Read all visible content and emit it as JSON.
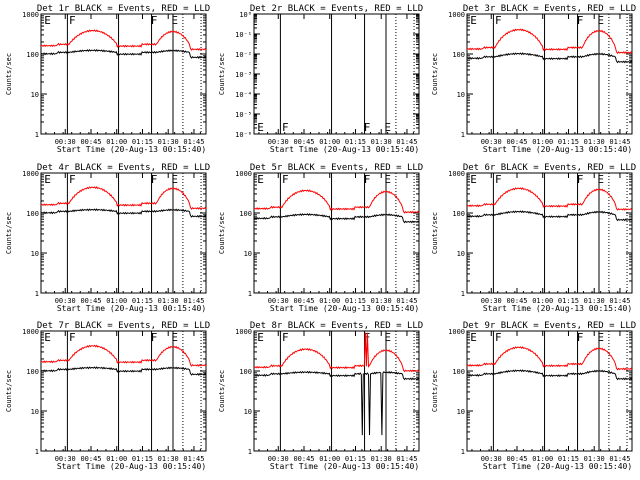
{
  "chart_data": [
    {
      "type": "line",
      "title": "Det 1r BLACK = Events, RED = LLD",
      "ylabel": "Counts/sec",
      "xlabel": "Start Time (20-Aug-13 00:15:40)",
      "yscale": "log",
      "ylim": [
        1,
        1000
      ],
      "yticks": [
        "1",
        "10",
        "100",
        "1000"
      ],
      "xticks": [
        "00:30",
        "00:45",
        "01:00",
        "01:15",
        "01:30",
        "01:45"
      ],
      "markers": [
        "E",
        "F",
        "F",
        "E"
      ],
      "series": [
        {
          "name": "Events",
          "color": "#000000",
          "base": 110,
          "amp": 1.12
        },
        {
          "name": "LLD",
          "color": "#ff0000",
          "base": 175,
          "amp": 2.2
        }
      ]
    },
    {
      "type": "line",
      "title": "Det 2r BLACK = Events, RED = LLD",
      "ylabel": "Counts/sec",
      "xlabel": "Start Time (20-Aug-13 00:15:40)",
      "yscale": "log",
      "ylim": [
        1e-06,
        1
      ],
      "yticks": [
        "10⁻⁶",
        "10⁻⁵",
        "10⁻⁴",
        "10⁻³",
        "10⁻²",
        "10⁻¹",
        "10⁰"
      ],
      "xticks": [
        "00:30",
        "00:45",
        "01:00",
        "01:15",
        "01:30",
        "01:45"
      ],
      "markers": [
        "E",
        "F",
        "F",
        "E"
      ],
      "series": []
    },
    {
      "type": "line",
      "title": "Det 3r BLACK = Events, RED = LLD",
      "ylabel": "Counts/sec",
      "xlabel": "Start Time (20-Aug-13 00:15:40)",
      "yscale": "log",
      "ylim": [
        1,
        1000
      ],
      "yticks": [
        "1",
        "10",
        "100",
        "1000"
      ],
      "xticks": [
        "00:30",
        "00:45",
        "01:00",
        "01:15",
        "01:30",
        "01:45"
      ],
      "markers": [
        "E",
        "F",
        "F",
        "E"
      ],
      "series": [
        {
          "name": "Events",
          "color": "#000000",
          "base": 85,
          "amp": 1.2
        },
        {
          "name": "LLD",
          "color": "#ff0000",
          "base": 145,
          "amp": 2.8
        }
      ]
    },
    {
      "type": "line",
      "title": "Det 4r BLACK = Events, RED = LLD",
      "ylabel": "Counts/sec",
      "xlabel": "Start Time (20-Aug-13 00:15:40)",
      "yscale": "log",
      "ylim": [
        1,
        1000
      ],
      "yticks": [
        "1",
        "10",
        "100",
        "1000"
      ],
      "xticks": [
        "00:30",
        "00:45",
        "01:00",
        "01:15",
        "01:30",
        "01:45"
      ],
      "markers": [
        "E",
        "F",
        "F",
        "E"
      ],
      "series": [
        {
          "name": "Events",
          "color": "#000000",
          "base": 110,
          "amp": 1.1
        },
        {
          "name": "LLD",
          "color": "#ff0000",
          "base": 175,
          "amp": 2.5
        }
      ]
    },
    {
      "type": "line",
      "title": "Det 5r BLACK = Events, RED = LLD",
      "ylabel": "Counts/sec",
      "xlabel": "Start Time (20-Aug-13 00:15:40)",
      "yscale": "log",
      "ylim": [
        1,
        1000
      ],
      "yticks": [
        "1",
        "10",
        "100",
        "1000"
      ],
      "xticks": [
        "00:30",
        "00:45",
        "01:00",
        "01:15",
        "01:30",
        "01:45"
      ],
      "markers": [
        "E",
        "F",
        "F",
        "E"
      ],
      "series": [
        {
          "name": "Events",
          "color": "#000000",
          "base": 80,
          "amp": 1.15
        },
        {
          "name": "LLD",
          "color": "#ff0000",
          "base": 140,
          "amp": 2.6
        }
      ]
    },
    {
      "type": "line",
      "title": "Det 6r BLACK = Events, RED = LLD",
      "ylabel": "Counts/sec",
      "xlabel": "Start Time (20-Aug-13 00:15:40)",
      "yscale": "log",
      "ylim": [
        1,
        1000
      ],
      "yticks": [
        "1",
        "10",
        "100",
        "1000"
      ],
      "xticks": [
        "00:30",
        "00:45",
        "01:00",
        "01:15",
        "01:30",
        "01:45"
      ],
      "markers": [
        "E",
        "F",
        "F",
        "E"
      ],
      "series": [
        {
          "name": "Events",
          "color": "#000000",
          "base": 90,
          "amp": 1.2
        },
        {
          "name": "LLD",
          "color": "#ff0000",
          "base": 165,
          "amp": 2.5
        }
      ]
    },
    {
      "type": "line",
      "title": "Det 7r BLACK = Events, RED = LLD",
      "ylabel": "Counts/sec",
      "xlabel": "Start Time (20-Aug-13 00:15:40)",
      "yscale": "log",
      "ylim": [
        1,
        1000
      ],
      "yticks": [
        "1",
        "10",
        "100",
        "1000"
      ],
      "xticks": [
        "00:30",
        "00:45",
        "01:00",
        "01:15",
        "01:30",
        "01:45"
      ],
      "markers": [
        "E",
        "F",
        "F",
        "E"
      ],
      "series": [
        {
          "name": "Events",
          "color": "#000000",
          "base": 110,
          "amp": 1.1
        },
        {
          "name": "LLD",
          "color": "#ff0000",
          "base": 185,
          "amp": 2.3
        }
      ]
    },
    {
      "type": "line",
      "title": "Det 8r BLACK = Events, RED = LLD",
      "ylabel": "Counts/sec",
      "xlabel": "Start Time (20-Aug-13 00:15:40)",
      "yscale": "log",
      "ylim": [
        1,
        1000
      ],
      "yticks": [
        "1",
        "10",
        "100",
        "1000"
      ],
      "xticks": [
        "00:30",
        "00:45",
        "01:00",
        "01:15",
        "01:30",
        "01:45"
      ],
      "markers": [
        "E",
        "F",
        "F",
        "E"
      ],
      "series": [
        {
          "name": "Events",
          "color": "#000000",
          "base": 85,
          "amp": 1.1,
          "spikes": true
        },
        {
          "name": "LLD",
          "color": "#ff0000",
          "base": 135,
          "amp": 2.6,
          "spikes": true
        }
      ]
    },
    {
      "type": "line",
      "title": "Det 9r BLACK = Events, RED = LLD",
      "ylabel": "Counts/sec",
      "xlabel": "Start Time (20-Aug-13 00:15:40)",
      "yscale": "log",
      "ylim": [
        1,
        1000
      ],
      "yticks": [
        "1",
        "10",
        "100",
        "1000"
      ],
      "xticks": [
        "00:30",
        "00:45",
        "01:00",
        "01:15",
        "01:30",
        "01:45"
      ],
      "markers": [
        "E",
        "F",
        "F",
        "E"
      ],
      "series": [
        {
          "name": "Events",
          "color": "#000000",
          "base": 85,
          "amp": 1.2
        },
        {
          "name": "LLD",
          "color": "#ff0000",
          "base": 150,
          "amp": 2.6
        }
      ]
    }
  ]
}
